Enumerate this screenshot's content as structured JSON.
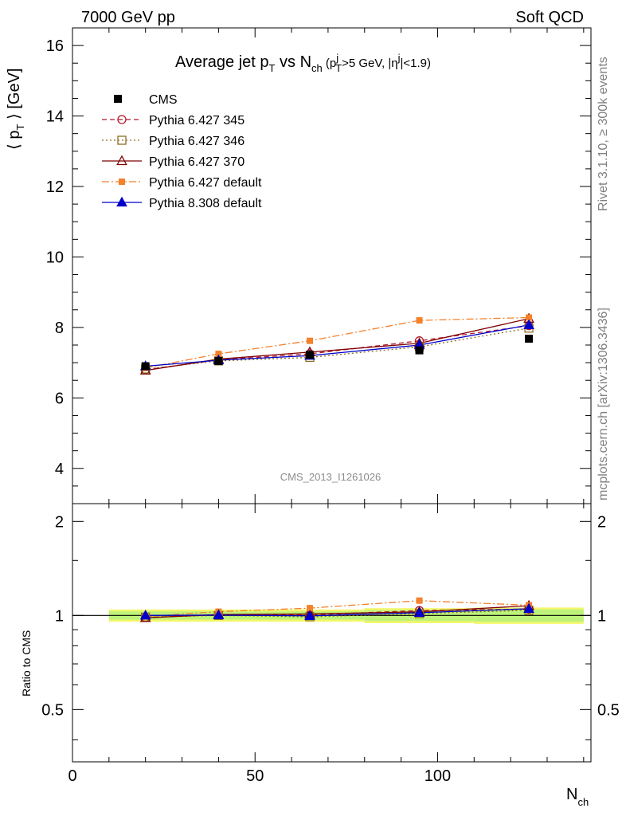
{
  "header": {
    "left": "7000 GeV pp",
    "right": "Soft QCD"
  },
  "side_labels": {
    "top": "Rivet 3.1.10, ≥ 300k events",
    "bottom": "mcplots.cern.ch [arXiv:1306.3436]"
  },
  "chart_data": {
    "type": "line",
    "title_parts": {
      "main": "Average jet p",
      "main_sub": "T",
      "vs": " vs N",
      "vs_sub": "ch",
      "cut_open": " (p",
      "cut_pt_sup": "j",
      "cut_pt_sub": "T",
      "cut_pt_val": ">5 GeV, |η",
      "cut_eta_sup": "j",
      "cut_eta_val": "|<1.9)"
    },
    "analysis_label": "CMS_2013_I1261026",
    "xlabel": "N",
    "xlabel_sub": "ch",
    "ylabel_main": "⟨ p",
    "ylabel_main_sub": "T",
    "ylabel_main_rest": " ⟩ [GeV]",
    "ylabel_ratio": "Ratio to CMS",
    "xlim": [
      0,
      142
    ],
    "ylim": [
      3,
      16.5
    ],
    "ratio_ylim": [
      0.34,
      2.28
    ],
    "ratio_log": true,
    "x_ticks": [
      0,
      50,
      100
    ],
    "y_ticks": [
      4,
      6,
      8,
      10,
      12,
      14,
      16
    ],
    "ratio_ticks": [
      0.5,
      1,
      2
    ],
    "ratio_tick_labels": [
      "0.5",
      "1",
      "2"
    ],
    "legend_position": "top-left",
    "x": [
      20,
      40,
      65,
      95,
      125
    ],
    "data": {
      "name": "CMS",
      "values": [
        6.9,
        7.05,
        7.22,
        7.35,
        7.68
      ],
      "color": "#000000",
      "band_low": [
        0.97,
        0.97,
        0.97,
        0.96,
        0.955
      ],
      "band_high": [
        1.03,
        1.03,
        1.03,
        1.04,
        1.045
      ]
    },
    "series": [
      {
        "name": "Pythia 6.427 345",
        "values": [
          6.8,
          7.08,
          7.25,
          7.62,
          8.05
        ],
        "color": "#b2182b",
        "dash": "6,4",
        "marker": "circle-open"
      },
      {
        "name": "Pythia 6.427 346",
        "values": [
          6.82,
          7.05,
          7.15,
          7.45,
          7.98
        ],
        "color": "#8c6d1f",
        "dash": "2,3",
        "marker": "square-open"
      },
      {
        "name": "Pythia 6.427 370",
        "values": [
          6.78,
          7.1,
          7.3,
          7.55,
          8.25
        ],
        "color": "#7f0000",
        "dash": "",
        "marker": "triangle-open"
      },
      {
        "name": "Pythia 6.427 default",
        "values": [
          6.85,
          7.25,
          7.62,
          8.2,
          8.28
        ],
        "color": "#f4812c",
        "dash": "9,3,2,3",
        "marker": "square-filled"
      },
      {
        "name": "Pythia 8.308 default",
        "values": [
          6.9,
          7.07,
          7.2,
          7.5,
          8.07
        ],
        "color": "#0000cc",
        "dash": "",
        "marker": "triangle-filled"
      }
    ]
  }
}
